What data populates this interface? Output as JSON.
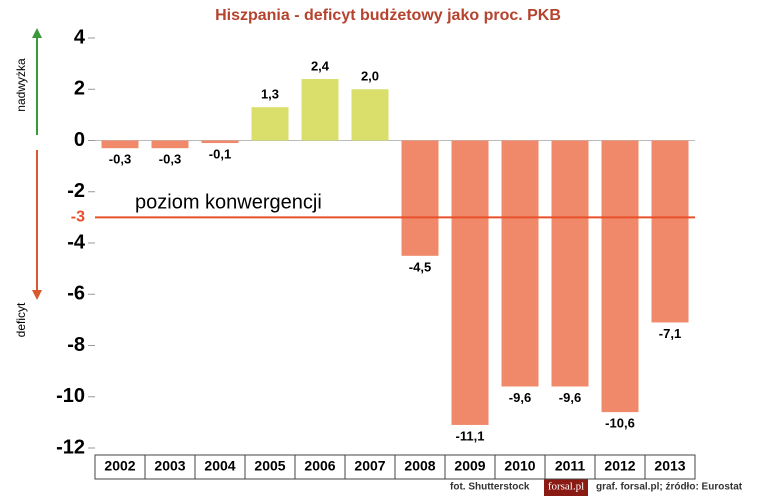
{
  "chart_data": {
    "type": "bar",
    "title": "Hiszpania - deficyt budżetowy jako proc. PKB",
    "categories": [
      "2002",
      "2003",
      "2004",
      "2005",
      "2006",
      "2007",
      "2008",
      "2009",
      "2010",
      "2011",
      "2012",
      "2013"
    ],
    "values": [
      -0.3,
      -0.3,
      -0.1,
      1.3,
      2.4,
      2.0,
      -4.5,
      -11.1,
      -9.6,
      -9.6,
      -10.6,
      -7.1
    ],
    "value_labels": [
      "-0,3",
      "-0,3",
      "-0,1",
      "1,3",
      "2,4",
      "2,0",
      "-4,5",
      "-11,1",
      "-9,6",
      "-9,6",
      "-10,6",
      "-7,1"
    ],
    "color_positive": "#d9df6a",
    "color_negative": "#f0896a",
    "ylim": [
      -12,
      4
    ],
    "yticks": [
      4,
      2,
      0,
      -2,
      -4,
      -6,
      -8,
      -10,
      -12
    ],
    "y_label_up": "nadwyżka",
    "y_label_down": "deficyt",
    "reference_line": {
      "value": -3,
      "label": "poziom konwergencji",
      "color": "#e8502a"
    },
    "credits": {
      "photo": "fot. Shutterstock",
      "logo": "forsal.pl",
      "source": "graf. forsal.pl; źródło: Eurostat"
    }
  }
}
